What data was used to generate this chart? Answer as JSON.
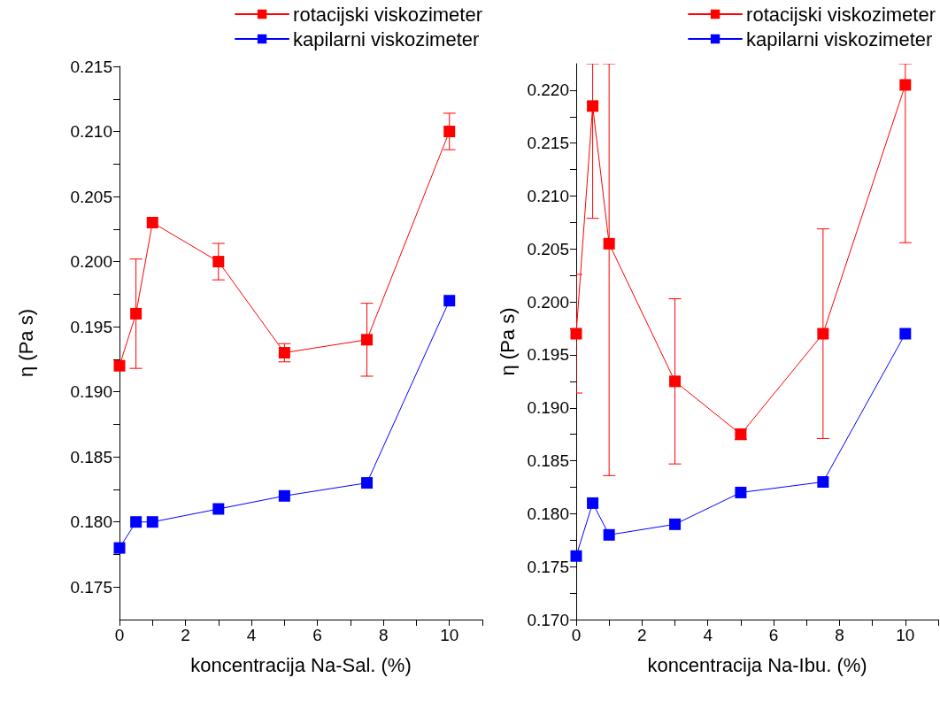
{
  "chart_data": [
    {
      "type": "line",
      "xlabel": "koncentracija Na-Sal. (%)",
      "ylabel": "η (Pa s)",
      "x": [
        0,
        0.5,
        1,
        3,
        5,
        7.5,
        10
      ],
      "series": [
        {
          "name": "rotacijski viskozimeter",
          "color": "#ff0000",
          "values": [
            0.192,
            0.196,
            0.203,
            0.2,
            0.193,
            0.194,
            0.21
          ],
          "errors": [
            null,
            0.0042,
            null,
            0.0014,
            0.0007,
            0.0028,
            0.0014
          ]
        },
        {
          "name": "kapilarni viskozimeter",
          "color": "#0000ff",
          "values": [
            0.178,
            0.18,
            0.18,
            0.181,
            0.182,
            0.183,
            0.197
          ]
        }
      ],
      "xlim": [
        0,
        11
      ],
      "xticks": [
        0,
        {
          "value": 1,
          "label": null
        },
        2,
        {
          "value": 3,
          "label": null
        },
        4,
        {
          "value": 5,
          "label": null
        },
        6,
        {
          "value": 7,
          "label": null
        },
        8,
        {
          "value": 9,
          "label": null
        },
        10,
        {
          "value": 11,
          "label": null
        }
      ],
      "ylim": [
        0.1725,
        0.215
      ],
      "yticks": [
        {
          "value": 0.175,
          "label": "0.175"
        },
        {
          "value": 0.1775,
          "label": null
        },
        {
          "value": 0.18,
          "label": "0.180"
        },
        {
          "value": 0.1825,
          "label": null
        },
        {
          "value": 0.185,
          "label": "0.185"
        },
        {
          "value": 0.1875,
          "label": null
        },
        {
          "value": 0.19,
          "label": "0.190"
        },
        {
          "value": 0.1925,
          "label": null
        },
        {
          "value": 0.195,
          "label": "0.195"
        },
        {
          "value": 0.1975,
          "label": null
        },
        {
          "value": 0.2,
          "label": "0.200"
        },
        {
          "value": 0.2025,
          "label": null
        },
        {
          "value": 0.205,
          "label": "0.205"
        },
        {
          "value": 0.2075,
          "label": null
        },
        {
          "value": 0.21,
          "label": "0.210"
        },
        {
          "value": 0.2125,
          "label": null
        },
        {
          "value": 0.215,
          "label": "0.215"
        }
      ],
      "grid": false,
      "legend": "top right",
      "marker": "square",
      "line_style": "solid"
    },
    {
      "type": "line",
      "xlabel": "koncentracija Na-Ibu. (%)",
      "ylabel": "η (Pa s)",
      "x": [
        0,
        0.5,
        1,
        3,
        5,
        7.5,
        10
      ],
      "series": [
        {
          "name": "rotacijski viskozimeter",
          "color": "#ff0000",
          "values": [
            0.197,
            0.2185,
            0.2055,
            0.1925,
            0.1875,
            0.197,
            0.2205
          ],
          "errors": [
            0.0056,
            [
              0.2079,
              0.2225
            ],
            [
              0.1836,
              0.2225
            ],
            0.0078,
            0.0005,
            0.0099,
            [
              0.2056,
              0.2225
            ]
          ]
        },
        {
          "name": "kapilarni viskozimeter",
          "color": "#0000ff",
          "values": [
            0.176,
            0.181,
            0.178,
            0.179,
            0.182,
            0.183,
            0.197
          ]
        }
      ],
      "xlim": [
        0,
        11
      ],
      "xticks": [
        0,
        {
          "value": 1,
          "label": null
        },
        2,
        {
          "value": 3,
          "label": null
        },
        4,
        {
          "value": 5,
          "label": null
        },
        6,
        {
          "value": 7,
          "label": null
        },
        8,
        {
          "value": 9,
          "label": null
        },
        10,
        {
          "value": 11,
          "label": null
        }
      ],
      "ylim": [
        0.17,
        0.2225
      ],
      "yticks": [
        {
          "value": 0.17,
          "label": "0.170"
        },
        {
          "value": 0.1725,
          "label": null
        },
        {
          "value": 0.175,
          "label": "0.175"
        },
        {
          "value": 0.1775,
          "label": null
        },
        {
          "value": 0.18,
          "label": "0.180"
        },
        {
          "value": 0.1825,
          "label": null
        },
        {
          "value": 0.185,
          "label": "0.185"
        },
        {
          "value": 0.1875,
          "label": null
        },
        {
          "value": 0.19,
          "label": "0.190"
        },
        {
          "value": 0.1925,
          "label": null
        },
        {
          "value": 0.195,
          "label": "0.195"
        },
        {
          "value": 0.1975,
          "label": null
        },
        {
          "value": 0.2,
          "label": "0.200"
        },
        {
          "value": 0.2025,
          "label": null
        },
        {
          "value": 0.205,
          "label": "0.205"
        },
        {
          "value": 0.2075,
          "label": null
        },
        {
          "value": 0.21,
          "label": "0.210"
        },
        {
          "value": 0.2125,
          "label": null
        },
        {
          "value": 0.215,
          "label": "0.215"
        },
        {
          "value": 0.2175,
          "label": null
        },
        {
          "value": 0.22,
          "label": "0.220"
        }
      ],
      "grid": false,
      "legend": "top right",
      "marker": "square",
      "line_style": "solid"
    }
  ]
}
